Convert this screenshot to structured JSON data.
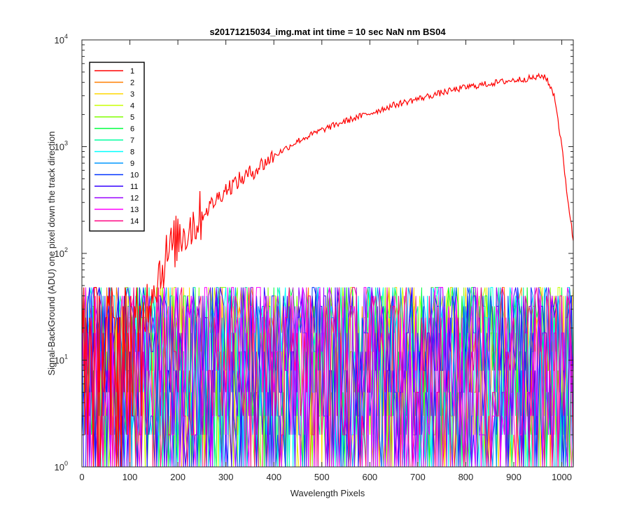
{
  "chart_data": {
    "type": "line",
    "title": "s20171215034_img.mat int time = 10 sec  NaN nm BS04",
    "xlabel": "Wavelength Pixels",
    "ylabel": "Signal-BackGround (ADU) one pixel down the track direction",
    "xlim": [
      0,
      1024
    ],
    "ylim": [
      1,
      10000
    ],
    "yscale": "log",
    "xticks": [
      0,
      100,
      200,
      300,
      400,
      500,
      600,
      700,
      800,
      900,
      1000
    ],
    "yticks": [
      {
        "value": 1,
        "base": "10",
        "exp": "0"
      },
      {
        "value": 10,
        "base": "10",
        "exp": "1"
      },
      {
        "value": 100,
        "base": "10",
        "exp": "2"
      },
      {
        "value": 1000,
        "base": "10",
        "exp": "3"
      },
      {
        "value": 10000,
        "base": "10",
        "exp": "4"
      }
    ],
    "grid": false,
    "legend_position": "top-left",
    "series": [
      {
        "name": "1",
        "color": "#ff0000",
        "x": [
          0,
          100,
          130,
          150,
          175,
          200,
          250,
          300,
          350,
          400,
          450,
          500,
          550,
          600,
          650,
          700,
          750,
          800,
          850,
          900,
          940,
          965,
          985,
          1000,
          1010,
          1024
        ],
        "y": [
          10,
          10,
          30,
          50,
          90,
          140,
          230,
          400,
          560,
          820,
          1130,
          1430,
          1740,
          2050,
          2450,
          2800,
          3200,
          3600,
          3900,
          4200,
          4400,
          4600,
          3000,
          1000,
          400,
          130
        ]
      },
      {
        "name": "2",
        "color": "#ff7f00"
      },
      {
        "name": "3",
        "color": "#ffd700"
      },
      {
        "name": "4",
        "color": "#c8ff00"
      },
      {
        "name": "5",
        "color": "#80ff00"
      },
      {
        "name": "6",
        "color": "#00ff40"
      },
      {
        "name": "7",
        "color": "#00ffa0"
      },
      {
        "name": "8",
        "color": "#00ffff"
      },
      {
        "name": "9",
        "color": "#0099ff"
      },
      {
        "name": "10",
        "color": "#0033ff"
      },
      {
        "name": "11",
        "color": "#3300ff"
      },
      {
        "name": "12",
        "color": "#9900ff"
      },
      {
        "name": "13",
        "color": "#ff00ff"
      },
      {
        "name": "14",
        "color": "#ff0080"
      }
    ],
    "noise_band": {
      "x": [
        0,
        1024
      ],
      "y_min": 1,
      "y_max": 50
    }
  }
}
